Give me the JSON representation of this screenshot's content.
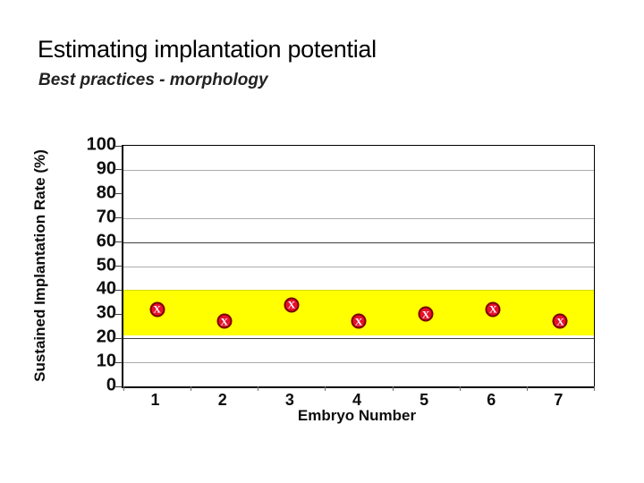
{
  "slide": {
    "title": "Estimating implantation potential",
    "subtitle": "Best practices - morphology"
  },
  "chart_data": {
    "type": "scatter",
    "title": "",
    "xlabel": "Embryo Number",
    "ylabel": "Sustained Implantation Rate (%)",
    "x": [
      1,
      2,
      3,
      4,
      5,
      6,
      7
    ],
    "values": [
      32,
      27,
      34,
      27,
      30,
      32,
      27
    ],
    "ylim": [
      0,
      100
    ],
    "yticks": [
      0,
      10,
      20,
      30,
      40,
      50,
      60,
      70,
      80,
      90,
      100
    ],
    "visible_gridlines": [
      10,
      20,
      50,
      60,
      70,
      90
    ],
    "dark_gridlines": [
      20,
      60
    ],
    "grid": true,
    "legend": false,
    "band": {
      "low": 21.5,
      "high": 40.3,
      "color": "#FFFF00"
    },
    "marker": {
      "shape": "circle-x",
      "label": "X",
      "fill": "#E8112D",
      "border": "#7A0000",
      "label_color": "#FFFFFF"
    }
  },
  "colors": {
    "background": "#FFFFFF",
    "title_text": "#000000",
    "subtitle_text": "#222222",
    "axis_text": "#0D0D0D",
    "gridline_light": "#ABABAB",
    "gridline_dark": "#3F3F3F"
  }
}
